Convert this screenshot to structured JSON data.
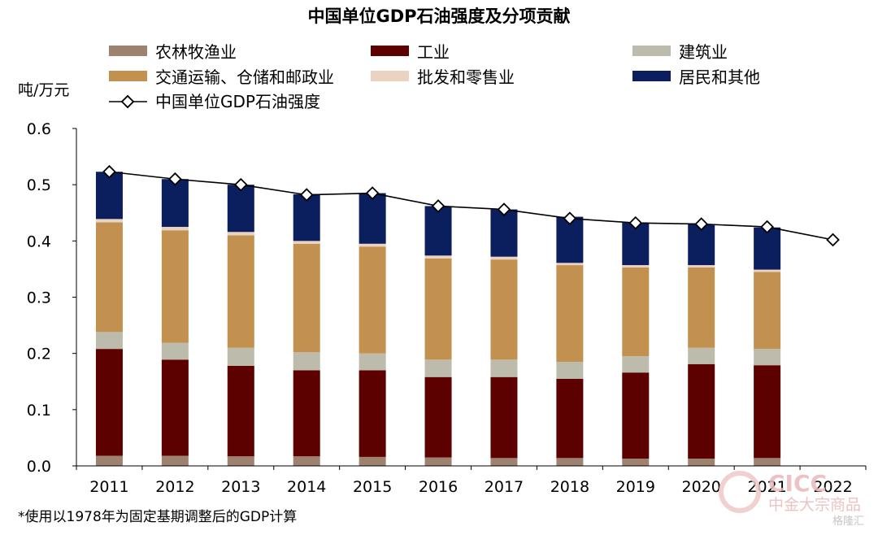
{
  "chart_data": {
    "type": "bar",
    "stacked": true,
    "title": "中国单位GDP石油强度及分项贡献",
    "ylabel": "吨/万元",
    "ylim": [
      0,
      0.6
    ],
    "yticks": [
      "0.0",
      "0.1",
      "0.2",
      "0.3",
      "0.4",
      "0.5",
      "0.6"
    ],
    "categories": [
      "2011",
      "2012",
      "2013",
      "2014",
      "2015",
      "2016",
      "2017",
      "2018",
      "2019",
      "2020",
      "2021",
      "2022"
    ],
    "series": [
      {
        "name": "农林牧渔业",
        "color": "#9e8270",
        "values": [
          0.018,
          0.018,
          0.017,
          0.017,
          0.016,
          0.015,
          0.014,
          0.014,
          0.013,
          0.013,
          0.014,
          null
        ]
      },
      {
        "name": "工业",
        "color": "#5c0000",
        "values": [
          0.19,
          0.171,
          0.161,
          0.153,
          0.154,
          0.143,
          0.144,
          0.141,
          0.153,
          0.168,
          0.165,
          null
        ]
      },
      {
        "name": "建筑业",
        "color": "#bdbcac",
        "values": [
          0.03,
          0.03,
          0.032,
          0.032,
          0.03,
          0.031,
          0.031,
          0.03,
          0.029,
          0.029,
          0.029,
          null
        ]
      },
      {
        "name": "交通运输、仓储和邮政业",
        "color": "#c2914f",
        "values": [
          0.195,
          0.2,
          0.2,
          0.193,
          0.19,
          0.18,
          0.178,
          0.172,
          0.158,
          0.143,
          0.137,
          null
        ]
      },
      {
        "name": "批发和零售业",
        "color": "#ead3c0",
        "values": [
          0.006,
          0.006,
          0.006,
          0.005,
          0.005,
          0.005,
          0.005,
          0.004,
          0.004,
          0.004,
          0.004,
          null
        ]
      },
      {
        "name": "居民和其他",
        "color": "#0b1f5e",
        "values": [
          0.084,
          0.085,
          0.084,
          0.083,
          0.09,
          0.088,
          0.084,
          0.082,
          0.076,
          0.073,
          0.075,
          null
        ]
      }
    ],
    "line": {
      "name": "中国单位GDP石油强度",
      "values": [
        0.523,
        0.51,
        0.5,
        0.482,
        0.485,
        0.462,
        0.456,
        0.44,
        0.432,
        0.43,
        0.425,
        0.402
      ]
    },
    "legend_position": "top",
    "grid": false,
    "footnote": "*使用以1978年为固定基期调整后的GDP计算"
  },
  "watermark": {
    "brand": "CICC",
    "sub": "中金大宗商品",
    "source": "格隆汇"
  }
}
